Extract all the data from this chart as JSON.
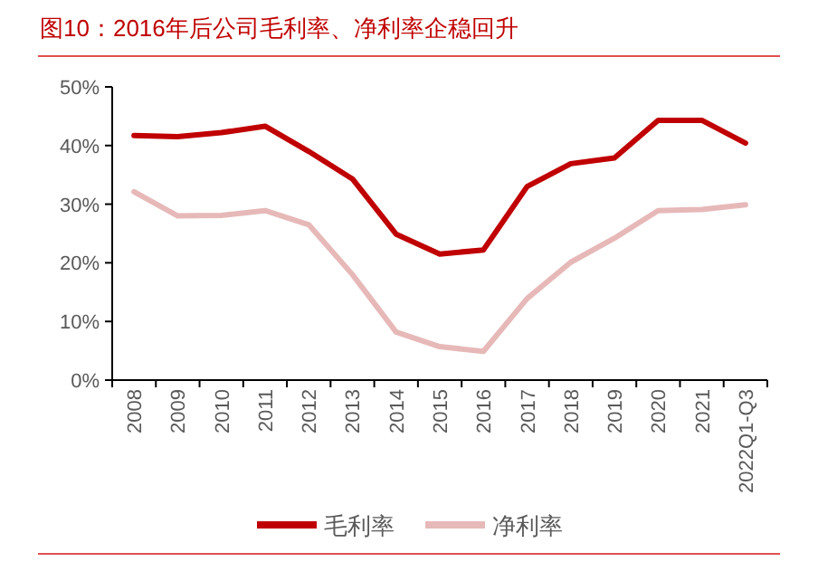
{
  "chart_data": {
    "type": "line",
    "title": "图10：2016年后公司毛利率、净利率企稳回升",
    "categories": [
      "2008",
      "2009",
      "2010",
      "2011",
      "2012",
      "2013",
      "2014",
      "2015",
      "2016",
      "2017",
      "2018",
      "2019",
      "2020",
      "2021",
      "2022Q1-Q3"
    ],
    "series": [
      {
        "name": "毛利率",
        "color": "#c00000",
        "values": [
          41.7,
          41.5,
          42.2,
          43.3,
          39.0,
          34.3,
          24.9,
          21.5,
          22.2,
          33.0,
          36.9,
          37.9,
          44.3,
          44.3,
          40.4
        ]
      },
      {
        "name": "净利率",
        "color": "#e6b9b8",
        "values": [
          32.1,
          28.0,
          28.1,
          28.9,
          26.5,
          18.0,
          8.2,
          5.7,
          4.9,
          13.9,
          20.1,
          24.2,
          28.9,
          29.1,
          29.9
        ]
      }
    ],
    "ylim": [
      0,
      50
    ],
    "yticks": [
      {
        "value": 0,
        "label": "0%"
      },
      {
        "value": 10,
        "label": "10%"
      },
      {
        "value": 20,
        "label": "20%"
      },
      {
        "value": 30,
        "label": "30%"
      },
      {
        "value": 40,
        "label": "40%"
      },
      {
        "value": 50,
        "label": "50%"
      }
    ],
    "grid": false,
    "legend": "bottom",
    "marker": "none",
    "line_style": "solid"
  }
}
